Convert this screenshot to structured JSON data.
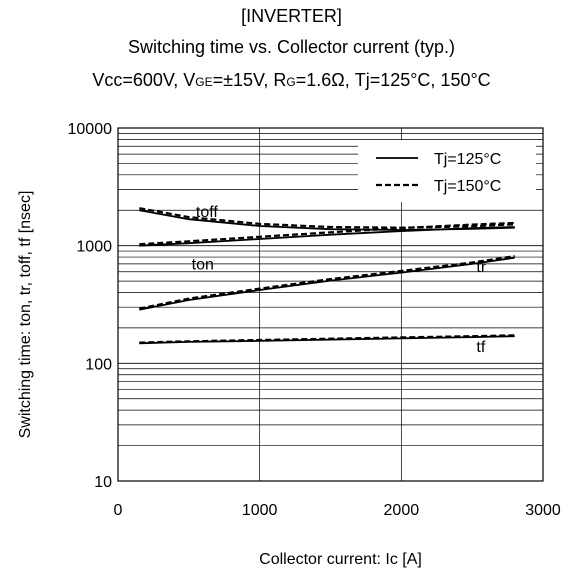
{
  "chart_data": {
    "type": "line",
    "title_lines": [
      "[INVERTER]",
      "Switching time vs. Collector current (typ.)",
      "Vcc=600V, VGE=±15V, RG=1.6Ω, Tj=125°C, 150°C"
    ],
    "title_subscripts": {
      "vge": "GE",
      "rg": "G"
    },
    "xlabel": "Collector current: Ic [A]",
    "ylabel": "Switching time: ton, tr, toff, tf [nsec]",
    "xlim": [
      0,
      3000
    ],
    "ylim": [
      10,
      10000
    ],
    "yscale": "log",
    "grid": true,
    "x_ticks": [
      0,
      1000,
      2000,
      3000
    ],
    "x_tick_labels": [
      "0",
      "1000",
      "2000",
      "3000"
    ],
    "y_ticks": [
      10,
      100,
      1000,
      10000
    ],
    "y_tick_labels": [
      "10",
      "100",
      "1000",
      "10000"
    ],
    "legend_position": "top-right",
    "legend": [
      {
        "name": "Tj=125°C",
        "style": "solid"
      },
      {
        "name": "Tj=150°C",
        "style": "dashed"
      }
    ],
    "curve_labels": [
      {
        "text": "toff",
        "x": 550,
        "y": 1750
      },
      {
        "text": "ton",
        "x": 520,
        "y": 630
      },
      {
        "text": "tr",
        "x": 2530,
        "y": 600
      },
      {
        "text": "tf",
        "x": 2530,
        "y": 125
      }
    ],
    "x": [
      150,
      500,
      1000,
      1500,
      2000,
      2500,
      2800
    ],
    "series": [
      {
        "curve": "toff",
        "temp": "Tj=125°C",
        "style": "solid",
        "values": [
          2000,
          1680,
          1470,
          1380,
          1360,
          1390,
          1420
        ]
      },
      {
        "curve": "toff",
        "temp": "Tj=150°C",
        "style": "dashed",
        "values": [
          2080,
          1750,
          1530,
          1440,
          1420,
          1460,
          1520
        ]
      },
      {
        "curve": "ton",
        "temp": "Tj=125°C",
        "style": "solid",
        "values": [
          1000,
          1050,
          1140,
          1240,
          1330,
          1410,
          1440
        ]
      },
      {
        "curve": "ton",
        "temp": "Tj=150°C",
        "style": "dashed",
        "values": [
          1030,
          1090,
          1190,
          1300,
          1410,
          1510,
          1560
        ]
      },
      {
        "curve": "tr",
        "temp": "Tj=125°C",
        "style": "solid",
        "values": [
          285,
          345,
          420,
          505,
          590,
          700,
          790
        ]
      },
      {
        "curve": "tr",
        "temp": "Tj=150°C",
        "style": "dashed",
        "values": [
          292,
          355,
          432,
          520,
          610,
          720,
          815
        ]
      },
      {
        "curve": "tf",
        "temp": "Tj=125°C",
        "style": "solid",
        "values": [
          148,
          152,
          155,
          159,
          163,
          167,
          170
        ]
      },
      {
        "curve": "tf",
        "temp": "Tj=150°C",
        "style": "dashed",
        "values": [
          150,
          154,
          158,
          162,
          166,
          170,
          173
        ]
      }
    ]
  }
}
